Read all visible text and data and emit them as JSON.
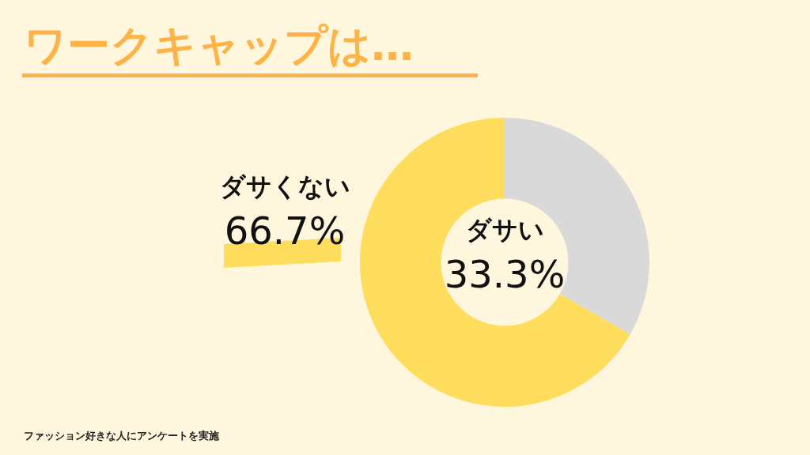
{
  "chart_data": {
    "type": "donut",
    "title": "ワークキャップは…",
    "categories": [
      "ダサい",
      "ダサくない"
    ],
    "values": [
      33.3,
      66.7
    ],
    "colors": [
      "#d9d9d9",
      "#ffdd5c"
    ],
    "value_labels": [
      "33.3%",
      "66.7%"
    ],
    "annotations": [
      "ファッション好きな人にアンケートを実施"
    ]
  }
}
